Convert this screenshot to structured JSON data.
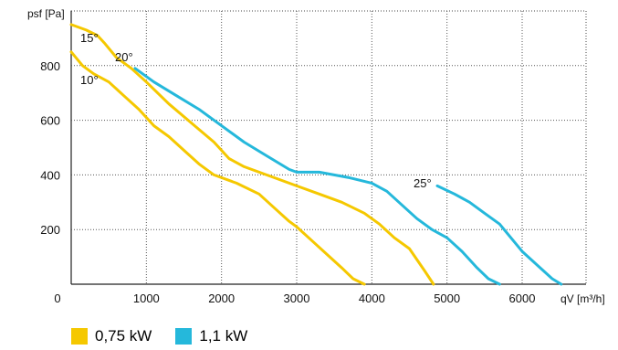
{
  "chart_data": {
    "type": "line",
    "ylabel": "psf [Pa]",
    "xlabel": "qV [m³/h]",
    "xlim": [
      0,
      6850
    ],
    "ylim": [
      0,
      1000
    ],
    "x_ticks": [
      "0",
      "1000",
      "2000",
      "3000",
      "4000",
      "5000",
      "6000"
    ],
    "y_ticks": [
      "200",
      "400",
      "600",
      "800"
    ],
    "grid": true,
    "legend_position": "bottom-left",
    "series": [
      {
        "name": "0,75 kW",
        "label": "10°",
        "color": "#f5c800",
        "x": [
          0,
          150,
          300,
          500,
          700,
          900,
          1100,
          1300,
          1500,
          1700,
          1900,
          2200,
          2500,
          2700,
          2900,
          3000,
          3200,
          3400,
          3600,
          3750,
          3900
        ],
        "values": [
          850,
          800,
          770,
          740,
          690,
          640,
          580,
          540,
          490,
          440,
          400,
          370,
          330,
          280,
          230,
          210,
          160,
          110,
          60,
          20,
          0
        ]
      },
      {
        "name": "0,75 kW",
        "label": "15°",
        "color": "#f5c800",
        "x": [
          0,
          200,
          350,
          450,
          600,
          800,
          1000,
          1300,
          1600,
          1900,
          2100,
          2300,
          2600,
          3000,
          3300,
          3600,
          3900,
          4100,
          4300,
          4500,
          4700,
          4820
        ],
        "values": [
          950,
          930,
          910,
          880,
          830,
          790,
          740,
          660,
          590,
          520,
          460,
          430,
          400,
          360,
          330,
          300,
          260,
          220,
          170,
          130,
          50,
          0
        ]
      },
      {
        "name": "1,1 kW",
        "label": "20°",
        "color": "#25b8db",
        "x": [
          850,
          1100,
          1400,
          1700,
          2000,
          2300,
          2600,
          2900,
          3000,
          3300,
          3700,
          4000,
          4200,
          4400,
          4600,
          4800,
          5000,
          5200,
          5400,
          5550,
          5700
        ],
        "values": [
          790,
          740,
          690,
          640,
          580,
          520,
          470,
          420,
          410,
          410,
          390,
          370,
          340,
          290,
          240,
          200,
          170,
          120,
          60,
          20,
          0
        ]
      },
      {
        "name": "1,1 kW",
        "label": "25°",
        "color": "#25b8db",
        "x": [
          4870,
          5100,
          5300,
          5500,
          5700,
          5850,
          6000,
          6200,
          6400,
          6520
        ],
        "values": [
          360,
          330,
          300,
          260,
          220,
          170,
          120,
          70,
          20,
          0
        ]
      }
    ]
  },
  "legend": [
    {
      "label": "0,75 kW",
      "color": "#f5c800"
    },
    {
      "label": "1,1 kW",
      "color": "#25b8db"
    }
  ]
}
